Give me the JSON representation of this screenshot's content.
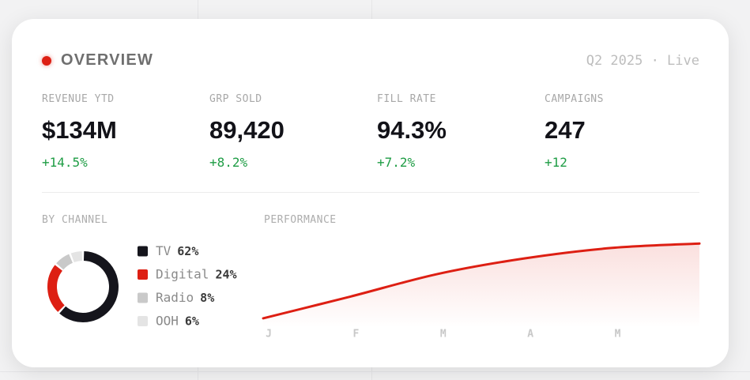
{
  "header": {
    "title": "OVERVIEW",
    "period": "Q2 2025 · Live"
  },
  "kpis": [
    {
      "label": "REVENUE YTD",
      "value": "$134M",
      "change": "+14.5%"
    },
    {
      "label": "GRP SOLD",
      "value": "89,420",
      "change": "+8.2%"
    },
    {
      "label": "FILL RATE",
      "value": "94.3%",
      "change": "+7.2%"
    },
    {
      "label": "CAMPAIGNS",
      "value": "247",
      "change": "+12"
    }
  ],
  "chart_data": [
    {
      "type": "pie",
      "title": "BY CHANNEL",
      "donut": true,
      "categories": [
        "TV",
        "Digital",
        "Radio",
        "OOH"
      ],
      "values": [
        62,
        24,
        8,
        6
      ],
      "value_labels": [
        "62%",
        "24%",
        "8%",
        "6%"
      ],
      "colors": [
        "#15151c",
        "#dd1f13",
        "#c9c9c9",
        "#e4e4e4"
      ]
    },
    {
      "type": "line",
      "title": "PERFORMANCE",
      "categories": [
        "J",
        "F",
        "M",
        "A",
        "M",
        null
      ],
      "values": [
        11,
        36,
        62,
        80,
        92,
        97
      ],
      "ylim": [
        0,
        100
      ],
      "color": "#dd1f13",
      "area": true
    }
  ]
}
